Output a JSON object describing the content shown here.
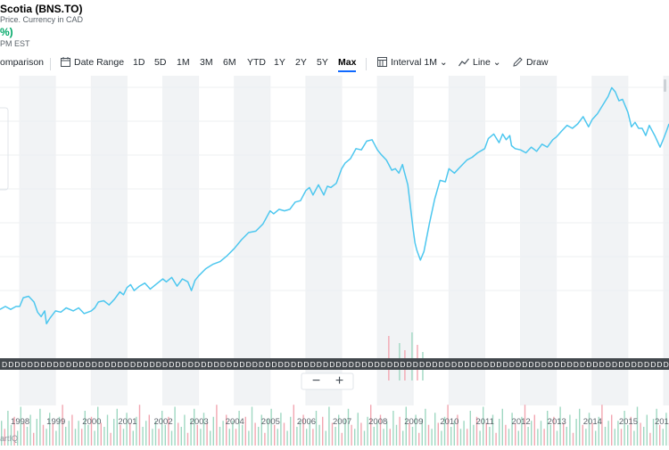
{
  "header": {
    "title": "Scotia (BNS.TO)",
    "subtitle": "Price. Currency in CAD",
    "change": "%)",
    "time": "PM EST"
  },
  "toolbar": {
    "comparison": "omparison",
    "date_range": "Date Range",
    "ranges": [
      "1D",
      "5D",
      "1M",
      "3M",
      "6M",
      "YTD",
      "1Y",
      "2Y",
      "5Y",
      "Max"
    ],
    "active_range": "Max",
    "interval": "Interval",
    "interval_value": "1M",
    "line": "Line",
    "draw": "Draw"
  },
  "zoom": {
    "minus": "−",
    "plus": "+"
  },
  "watermark": "artIQ",
  "colors": {
    "line": "#4dc7ef",
    "band": "#f1f3f5",
    "vol_up": "#9fd8c2",
    "vol_down": "#f2a6b1"
  },
  "event_marker_label": "D",
  "chart_data": {
    "type": "line",
    "title": "",
    "xlabel": "",
    "ylabel": "",
    "x_ticks": [
      "1998",
      "1999",
      "2000",
      "2001",
      "2002",
      "2003",
      "2004",
      "2005",
      "2006",
      "2007",
      "2008",
      "2009",
      "2010",
      "2011",
      "2012",
      "2013",
      "2014",
      "2015",
      "201"
    ],
    "x_range": [
      1997.45,
      2016.15
    ],
    "y_range": [
      0,
      100
    ],
    "grid": true,
    "series": [
      {
        "name": "",
        "x": [
          1997.45,
          1997.6,
          1997.75,
          1997.9,
          1998.0,
          1998.1,
          1998.25,
          1998.4,
          1998.5,
          1998.6,
          1998.7,
          1998.75,
          1998.85,
          1999.0,
          1999.15,
          1999.3,
          1999.5,
          1999.65,
          1999.8,
          2000.0,
          2000.1,
          2000.2,
          2000.35,
          2000.5,
          2000.65,
          2000.8,
          2000.9,
          2001.0,
          2001.1,
          2001.2,
          2001.35,
          2001.5,
          2001.65,
          2001.8,
          2002.0,
          2002.1,
          2002.25,
          2002.4,
          2002.55,
          2002.7,
          2002.8,
          2002.9,
          2003.0,
          2003.2,
          2003.4,
          2003.6,
          2003.8,
          2004.0,
          2004.2,
          2004.4,
          2004.6,
          2004.8,
          2005.0,
          2005.1,
          2005.25,
          2005.4,
          2005.55,
          2005.7,
          2005.85,
          2006.0,
          2006.1,
          2006.2,
          2006.35,
          2006.5,
          2006.6,
          2006.7,
          2006.85,
          2007.0,
          2007.1,
          2007.25,
          2007.4,
          2007.55,
          2007.7,
          2007.85,
          2008.0,
          2008.1,
          2008.25,
          2008.4,
          2008.5,
          2008.6,
          2008.7,
          2008.75,
          2008.85,
          2009.0,
          2009.05,
          2009.1,
          2009.2,
          2009.3,
          2009.45,
          2009.6,
          2009.75,
          2009.9,
          2010.0,
          2010.15,
          2010.3,
          2010.5,
          2010.65,
          2010.8,
          2011.0,
          2011.1,
          2011.25,
          2011.4,
          2011.5,
          2011.6,
          2011.7,
          2011.75,
          2011.85,
          2012.0,
          2012.15,
          2012.3,
          2012.45,
          2012.6,
          2012.75,
          2012.9,
          2013.0,
          2013.15,
          2013.3,
          2013.45,
          2013.6,
          2013.75,
          2013.9,
          2014.0,
          2014.15,
          2014.3,
          2014.45,
          2014.55,
          2014.65,
          2014.75,
          2014.85,
          2015.0,
          2015.1,
          2015.2,
          2015.3,
          2015.4,
          2015.5,
          2015.6,
          2015.75,
          2015.9,
          2016.0,
          2016.08,
          2016.15
        ],
        "y": [
          6.4,
          7.6,
          6.4,
          7.6,
          7.6,
          11.1,
          11.7,
          9.4,
          5.3,
          3.5,
          5.8,
          0.6,
          2.9,
          5.8,
          5.3,
          7.0,
          5.8,
          7.0,
          4.7,
          5.8,
          7.0,
          9.4,
          9.9,
          8.2,
          10.5,
          13.5,
          12.3,
          15.2,
          16.4,
          14.0,
          15.8,
          17.0,
          14.6,
          16.4,
          18.7,
          17.5,
          19.3,
          15.8,
          18.7,
          17.5,
          14.0,
          18.1,
          19.9,
          22.8,
          24.6,
          25.7,
          28.1,
          31.0,
          34.5,
          37.4,
          38.0,
          40.9,
          46.2,
          45.0,
          46.8,
          46.2,
          46.8,
          49.7,
          50.3,
          54.4,
          55.6,
          52.6,
          56.7,
          52.6,
          56.1,
          55.6,
          57.3,
          63.2,
          65.5,
          67.3,
          71.3,
          70.8,
          74.3,
          74.9,
          70.8,
          69.0,
          66.7,
          62.6,
          63.2,
          61.4,
          64.9,
          62.0,
          56.7,
          38.6,
          33.3,
          30.4,
          26.3,
          29.8,
          40.9,
          50.9,
          58.5,
          57.9,
          63.2,
          61.4,
          63.7,
          66.7,
          67.8,
          69.6,
          71.3,
          75.4,
          77.2,
          73.7,
          77.2,
          74.9,
          76.6,
          72.5,
          71.3,
          70.8,
          69.6,
          71.9,
          70.2,
          73.1,
          71.9,
          74.9,
          76.0,
          78.4,
          80.7,
          79.5,
          81.3,
          84.2,
          80.1,
          83.0,
          85.4,
          88.9,
          92.4,
          95.9,
          94.2,
          90.6,
          91.2,
          86.0,
          80.1,
          81.9,
          79.5,
          79.5,
          76.6,
          80.7,
          76.6,
          71.9,
          75.4,
          78.4,
          81.3
        ]
      }
    ],
    "volume_pattern": [
      0.55,
      0.35,
      0.8,
      0.45,
      0.65,
      0.3,
      0.9,
      0.5,
      0.4,
      0.7,
      0.25,
      0.6,
      0.85,
      0.45,
      0.35,
      0.75,
      0.5,
      0.3,
      0.65,
      0.95,
      0.4,
      0.55,
      0.7,
      0.35
    ]
  }
}
